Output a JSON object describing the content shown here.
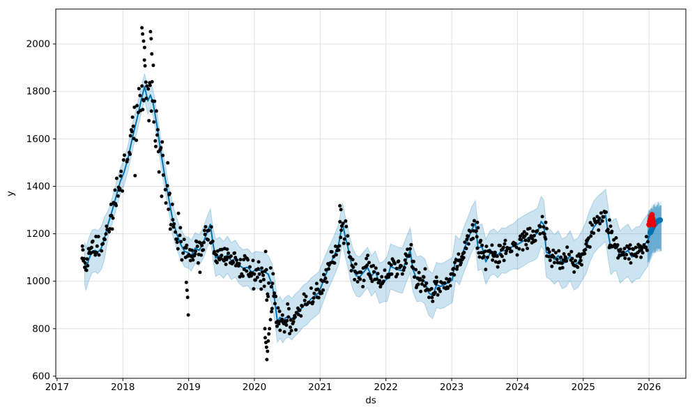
{
  "figure": {
    "background": "#ffffff"
  },
  "chart_data": {
    "type": "line",
    "subtype": "prophet-forecast-with-uncertainty-band-and-anomalies",
    "title": "",
    "xlabel": "ds",
    "ylabel": "y",
    "x_tick_labels": [
      "2017",
      "2018",
      "2019",
      "2020",
      "2021",
      "2022",
      "2023",
      "2024",
      "2025",
      "2026"
    ],
    "x_tick_values": [
      2017,
      2018,
      2019,
      2020,
      2021,
      2022,
      2023,
      2024,
      2025,
      2026
    ],
    "y_tick_labels": [
      "600",
      "800",
      "1000",
      "1200",
      "1400",
      "1600",
      "1800",
      "2000"
    ],
    "y_tick_values": [
      600,
      800,
      1000,
      1200,
      1400,
      1600,
      1800,
      2000
    ],
    "xlim": [
      2016.98,
      2026.56
    ],
    "ylim": [
      591,
      2147
    ],
    "grid": true,
    "legend_position": "none",
    "colors": {
      "trend_line": "#0072B2",
      "uncertainty_band": "rgba(0,114,178,0.2)",
      "band_edge": "rgba(0,114,178,0.25)",
      "observed_points": "#000000",
      "anomaly_points": "#e8000b",
      "gridline": "#e0e0e0",
      "spine": "#000000"
    },
    "trend_band": {
      "format": "[t, yhat, band_halfwidth]",
      "points": [
        [
          2017.42,
          1075,
          90
        ],
        [
          2017.44,
          1052,
          90
        ],
        [
          2017.48,
          1090,
          90
        ],
        [
          2017.53,
          1125,
          90
        ],
        [
          2017.58,
          1130,
          90
        ],
        [
          2017.62,
          1122,
          90
        ],
        [
          2017.67,
          1138,
          90
        ],
        [
          2017.72,
          1180,
          90
        ],
        [
          2017.78,
          1245,
          55
        ],
        [
          2017.84,
          1300,
          55
        ],
        [
          2017.9,
          1360,
          55
        ],
        [
          2017.96,
          1420,
          55
        ],
        [
          2018.02,
          1460,
          55
        ],
        [
          2018.08,
          1520,
          55
        ],
        [
          2018.15,
          1610,
          55
        ],
        [
          2018.22,
          1690,
          55
        ],
        [
          2018.28,
          1765,
          55
        ],
        [
          2018.33,
          1820,
          55
        ],
        [
          2018.38,
          1760,
          55
        ],
        [
          2018.42,
          1785,
          55
        ],
        [
          2018.46,
          1750,
          55
        ],
        [
          2018.52,
          1655,
          55
        ],
        [
          2018.58,
          1540,
          55
        ],
        [
          2018.64,
          1440,
          55
        ],
        [
          2018.7,
          1345,
          55
        ],
        [
          2018.76,
          1255,
          65
        ],
        [
          2018.82,
          1200,
          65
        ],
        [
          2018.88,
          1155,
          65
        ],
        [
          2018.94,
          1125,
          65
        ],
        [
          2019.0,
          1120,
          65
        ],
        [
          2019.04,
          1108,
          65
        ],
        [
          2019.1,
          1140,
          65
        ],
        [
          2019.16,
          1130,
          65
        ],
        [
          2019.22,
          1160,
          65
        ],
        [
          2019.28,
          1205,
          65
        ],
        [
          2019.33,
          1240,
          65
        ],
        [
          2019.37,
          1160,
          65
        ],
        [
          2019.41,
          1098,
          78
        ],
        [
          2019.47,
          1108,
          78
        ],
        [
          2019.53,
          1090,
          78
        ],
        [
          2019.59,
          1112,
          78
        ],
        [
          2019.65,
          1085,
          78
        ],
        [
          2019.71,
          1095,
          78
        ],
        [
          2019.77,
          1068,
          78
        ],
        [
          2019.83,
          1055,
          78
        ],
        [
          2019.9,
          1059,
          78
        ],
        [
          2019.96,
          1038,
          78
        ],
        [
          2020.02,
          1048,
          78
        ],
        [
          2020.08,
          1046,
          78
        ],
        [
          2020.14,
          1042,
          78
        ],
        [
          2020.21,
          1030,
          78
        ],
        [
          2020.27,
          985,
          88
        ],
        [
          2020.31,
          920,
          88
        ],
        [
          2020.35,
          830,
          88
        ],
        [
          2020.39,
          848,
          88
        ],
        [
          2020.43,
          828,
          88
        ],
        [
          2020.47,
          845,
          88
        ],
        [
          2020.52,
          853,
          88
        ],
        [
          2020.57,
          840,
          88
        ],
        [
          2020.62,
          858,
          88
        ],
        [
          2020.68,
          872,
          88
        ],
        [
          2020.74,
          895,
          88
        ],
        [
          2020.8,
          905,
          88
        ],
        [
          2020.86,
          925,
          88
        ],
        [
          2020.92,
          938,
          88
        ],
        [
          2020.98,
          952,
          88
        ],
        [
          2021.04,
          995,
          88
        ],
        [
          2021.1,
          1038,
          85
        ],
        [
          2021.16,
          1075,
          85
        ],
        [
          2021.22,
          1112,
          85
        ],
        [
          2021.28,
          1155,
          85
        ],
        [
          2021.34,
          1244,
          85
        ],
        [
          2021.38,
          1190,
          85
        ],
        [
          2021.42,
          1145,
          85
        ],
        [
          2021.46,
          1090,
          85
        ],
        [
          2021.5,
          1050,
          85
        ],
        [
          2021.55,
          1023,
          85
        ],
        [
          2021.6,
          1018,
          85
        ],
        [
          2021.66,
          1038,
          85
        ],
        [
          2021.72,
          1058,
          85
        ],
        [
          2021.78,
          1022,
          85
        ],
        [
          2021.84,
          1042,
          85
        ],
        [
          2021.9,
          992,
          85
        ],
        [
          2021.96,
          998,
          85
        ],
        [
          2022.02,
          1010,
          95
        ],
        [
          2022.07,
          1062,
          95
        ],
        [
          2022.13,
          1055,
          95
        ],
        [
          2022.19,
          1048,
          95
        ],
        [
          2022.25,
          1045,
          95
        ],
        [
          2022.31,
          1092,
          95
        ],
        [
          2022.37,
          1130,
          95
        ],
        [
          2022.41,
          1050,
          95
        ],
        [
          2022.47,
          1008,
          95
        ],
        [
          2022.53,
          1012,
          95
        ],
        [
          2022.59,
          1000,
          95
        ],
        [
          2022.65,
          952,
          95
        ],
        [
          2022.71,
          938,
          95
        ],
        [
          2022.77,
          985,
          95
        ],
        [
          2022.83,
          978,
          95
        ],
        [
          2022.89,
          985,
          95
        ],
        [
          2022.95,
          995,
          95
        ],
        [
          2023.01,
          1005,
          95
        ],
        [
          2023.06,
          1098,
          95
        ],
        [
          2023.12,
          1080,
          95
        ],
        [
          2023.18,
          1130,
          95
        ],
        [
          2023.24,
          1170,
          95
        ],
        [
          2023.3,
          1215,
          95
        ],
        [
          2023.36,
          1245,
          95
        ],
        [
          2023.4,
          1140,
          95
        ],
        [
          2023.46,
          1146,
          95
        ],
        [
          2023.52,
          1082,
          95
        ],
        [
          2023.58,
          1116,
          95
        ],
        [
          2023.64,
          1126,
          95
        ],
        [
          2023.7,
          1110,
          95
        ],
        [
          2023.76,
          1130,
          95
        ],
        [
          2023.82,
          1128,
          95
        ],
        [
          2023.88,
          1140,
          95
        ],
        [
          2023.94,
          1148,
          95
        ],
        [
          2024.0,
          1155,
          105
        ],
        [
          2024.06,
          1165,
          105
        ],
        [
          2024.12,
          1175,
          105
        ],
        [
          2024.18,
          1185,
          105
        ],
        [
          2024.24,
          1192,
          105
        ],
        [
          2024.3,
          1202,
          105
        ],
        [
          2024.36,
          1252,
          105
        ],
        [
          2024.4,
          1238,
          105
        ],
        [
          2024.44,
          1122,
          105
        ],
        [
          2024.5,
          1112,
          105
        ],
        [
          2024.56,
          1092,
          105
        ],
        [
          2024.62,
          1108,
          105
        ],
        [
          2024.68,
          1073,
          105
        ],
        [
          2024.74,
          1082,
          105
        ],
        [
          2024.8,
          1108,
          105
        ],
        [
          2024.86,
          1068,
          105
        ],
        [
          2024.92,
          1078,
          105
        ],
        [
          2024.98,
          1108,
          105
        ],
        [
          2025.04,
          1140,
          110
        ],
        [
          2025.1,
          1190,
          110
        ],
        [
          2025.16,
          1228,
          110
        ],
        [
          2025.22,
          1248,
          110
        ],
        [
          2025.28,
          1262,
          110
        ],
        [
          2025.34,
          1278,
          110
        ],
        [
          2025.38,
          1200,
          110
        ],
        [
          2025.42,
          1138,
          110
        ],
        [
          2025.46,
          1150,
          110
        ],
        [
          2025.5,
          1155,
          110
        ],
        [
          2025.56,
          1102,
          110
        ],
        [
          2025.62,
          1118,
          110
        ],
        [
          2025.68,
          1130,
          110
        ],
        [
          2025.74,
          1102,
          110
        ],
        [
          2025.8,
          1118,
          110
        ],
        [
          2025.86,
          1122,
          110
        ],
        [
          2025.92,
          1150,
          110
        ],
        [
          2025.98,
          1172,
          110
        ]
      ]
    },
    "forecast_tail": {
      "format": "[t, yhat, lo, hi]",
      "striped_band": true,
      "points": [
        [
          2025.98,
          1172,
          1060,
          1290
        ],
        [
          2026.01,
          1195,
          1078,
          1305
        ],
        [
          2026.04,
          1218,
          1098,
          1318
        ],
        [
          2026.07,
          1233,
          1110,
          1327
        ],
        [
          2026.1,
          1245,
          1118,
          1332
        ],
        [
          2026.13,
          1251,
          1123,
          1335
        ],
        [
          2026.16,
          1250,
          1122,
          1334
        ],
        [
          2026.19,
          1254,
          1126,
          1338
        ]
      ],
      "thick_segment": [
        [
          2026.02,
          1205
        ],
        [
          2026.07,
          1235
        ],
        [
          2026.12,
          1252
        ],
        [
          2026.17,
          1258
        ]
      ]
    },
    "observed_scatter": {
      "generated": true,
      "seed": 20177,
      "t_start": 2017.38,
      "t_end": 2025.985,
      "step_days": 3.5,
      "skip_prob": 0.18,
      "dot_radius": 2.5,
      "sd_anchors": [
        [
          2017.38,
          24
        ],
        [
          2017.8,
          30
        ],
        [
          2018.0,
          45
        ],
        [
          2018.2,
          70
        ],
        [
          2018.35,
          85
        ],
        [
          2018.55,
          80
        ],
        [
          2018.7,
          55
        ],
        [
          2018.85,
          38
        ],
        [
          2019.05,
          30
        ],
        [
          2019.3,
          36
        ],
        [
          2019.5,
          26
        ],
        [
          2019.75,
          26
        ],
        [
          2019.95,
          34
        ],
        [
          2020.1,
          30
        ],
        [
          2020.22,
          60
        ],
        [
          2020.35,
          40
        ],
        [
          2020.55,
          26
        ],
        [
          2020.8,
          22
        ],
        [
          2021.0,
          22
        ],
        [
          2021.25,
          34
        ],
        [
          2021.4,
          30
        ],
        [
          2021.6,
          26
        ],
        [
          2021.9,
          22
        ],
        [
          2022.2,
          24
        ],
        [
          2022.5,
          24
        ],
        [
          2022.8,
          22
        ],
        [
          2023.1,
          22
        ],
        [
          2023.38,
          30
        ],
        [
          2023.6,
          24
        ],
        [
          2023.9,
          20
        ],
        [
          2024.2,
          20
        ],
        [
          2024.4,
          28
        ],
        [
          2024.7,
          22
        ],
        [
          2025.0,
          20
        ],
        [
          2025.25,
          24
        ],
        [
          2025.45,
          30
        ],
        [
          2025.7,
          20
        ],
        [
          2025.95,
          18
        ]
      ]
    },
    "observed_outliers": [
      [
        2017.385,
        1148
      ],
      [
        2017.392,
        1132
      ],
      [
        2018.29,
        2068
      ],
      [
        2018.3,
        2042
      ],
      [
        2018.315,
        2012
      ],
      [
        2018.33,
        1985
      ],
      [
        2018.42,
        2052
      ],
      [
        2018.43,
        2022
      ],
      [
        2018.44,
        1958
      ],
      [
        2018.965,
        995
      ],
      [
        2018.975,
        962
      ],
      [
        2018.985,
        932
      ],
      [
        2018.995,
        858
      ],
      [
        2020.16,
        800
      ],
      [
        2020.165,
        762
      ],
      [
        2020.175,
        742
      ],
      [
        2020.185,
        722
      ],
      [
        2020.19,
        670
      ],
      [
        2020.2,
        705
      ],
      [
        2020.21,
        748
      ],
      [
        2020.22,
        778
      ],
      [
        2020.23,
        800
      ],
      [
        2020.245,
        838
      ],
      [
        2020.26,
        872
      ],
      [
        2021.3,
        1318
      ],
      [
        2021.315,
        1302
      ],
      [
        2023.39,
        1248
      ],
      [
        2023.4,
        1225
      ],
      [
        2024.43,
        1248
      ],
      [
        2024.445,
        1222
      ],
      [
        2025.4,
        1258
      ],
      [
        2025.415,
        1232
      ],
      [
        2025.43,
        1205
      ]
    ],
    "anomaly_points_red": [
      [
        2026.0,
        1238
      ],
      [
        2026.012,
        1252
      ],
      [
        2026.022,
        1262
      ],
      [
        2026.032,
        1273
      ],
      [
        2026.045,
        1280
      ],
      [
        2026.052,
        1265
      ],
      [
        2026.06,
        1250
      ],
      [
        2026.068,
        1238
      ]
    ],
    "anomaly_dot_radius": 4
  }
}
